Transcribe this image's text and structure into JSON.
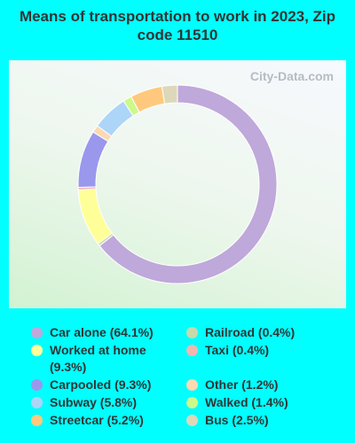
{
  "chart_data": {
    "type": "donut",
    "title": "Means of transportation to work in 2023, Zip code 11510",
    "watermark": "City-Data.com",
    "categories": [
      "Car alone (64.1%)",
      "Worked at home (9.3%)",
      "Carpooled (9.3%)",
      "Subway (5.8%)",
      "Streetcar (5.2%)",
      "Railroad (0.4%)",
      "Taxi (0.4%)",
      "Other (1.2%)",
      "Walked (1.4%)",
      "Bus (2.5%)"
    ],
    "values": [
      64.1,
      9.3,
      9.3,
      5.8,
      5.2,
      0.4,
      0.4,
      1.2,
      1.4,
      2.5
    ],
    "colors": [
      "#bfa8da",
      "#ffff99",
      "#9a98ec",
      "#acd5f8",
      "#ffc97d",
      "#c9d9a9",
      "#f2b6b0",
      "#fcd9b2",
      "#cdf98a",
      "#ddd8b9"
    ],
    "slice_order": [
      0,
      5,
      1,
      6,
      2,
      7,
      3,
      8,
      4,
      9
    ]
  }
}
